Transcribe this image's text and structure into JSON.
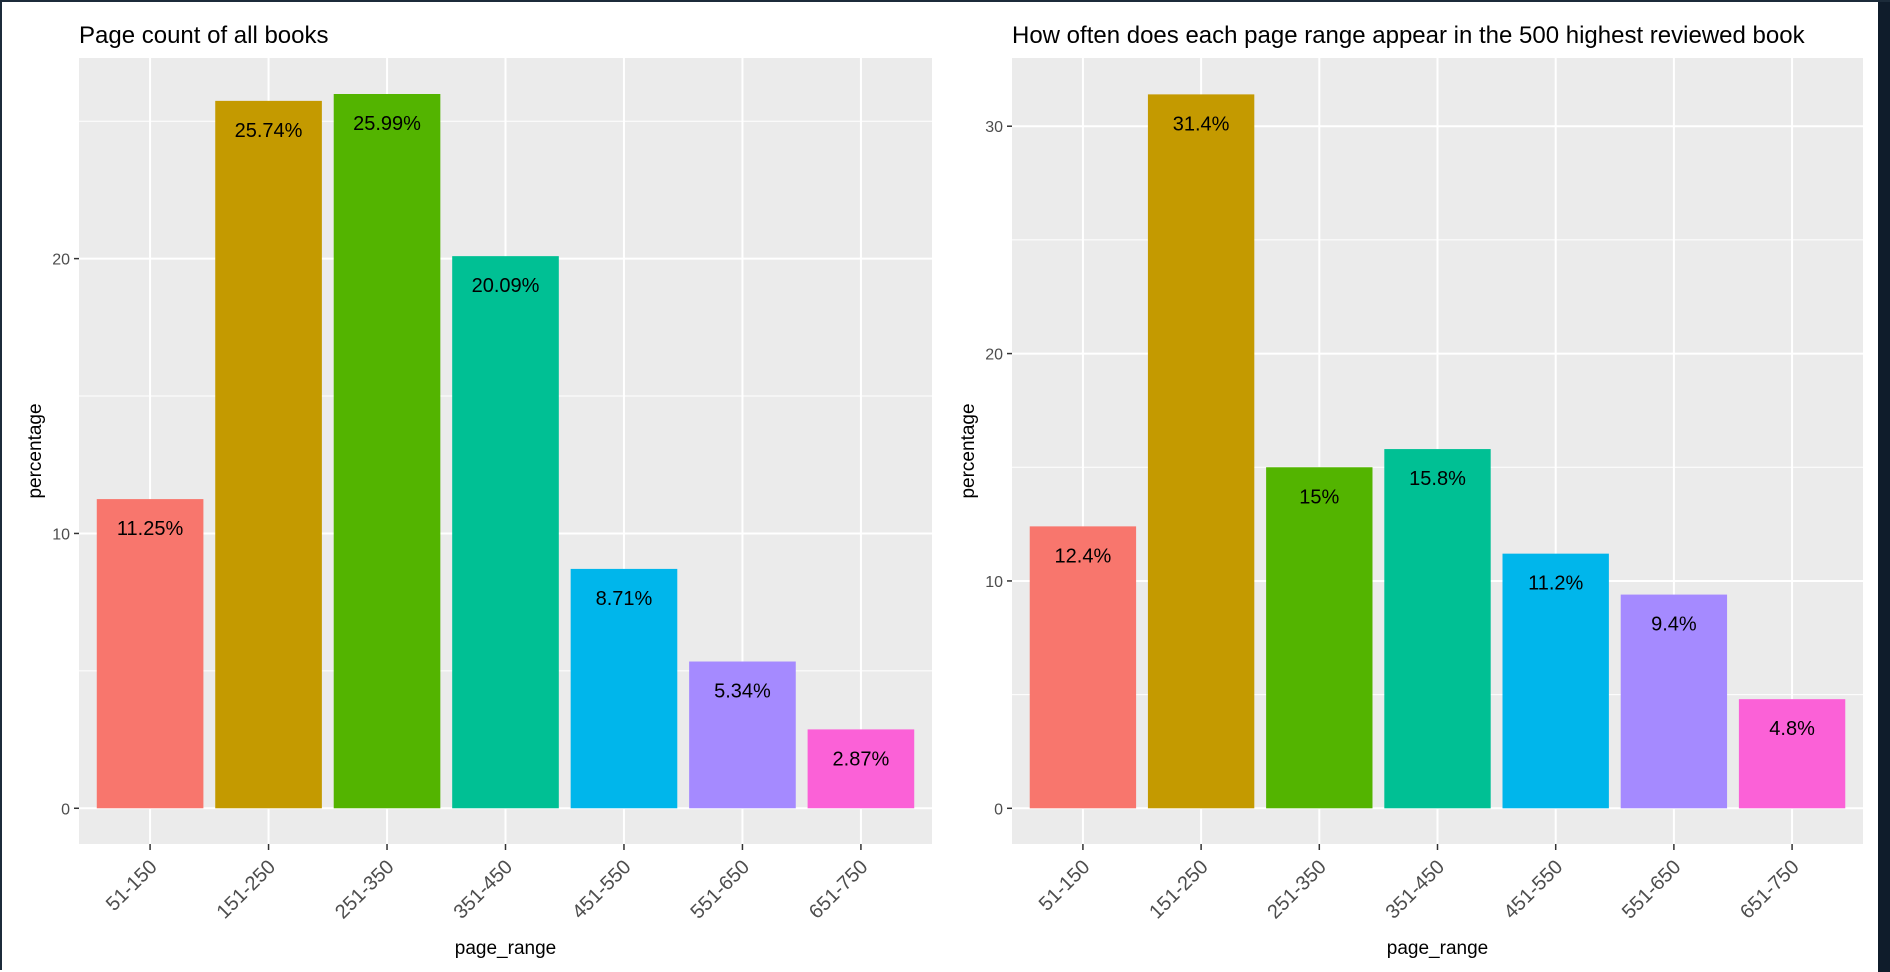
{
  "chart_data": [
    {
      "type": "bar",
      "title": "Page count of all books",
      "xlabel": "page_range",
      "ylabel": "percentage",
      "categories": [
        "51-150",
        "151-250",
        "251-350",
        "351-450",
        "451-550",
        "551-650",
        "651-750"
      ],
      "values": [
        11.25,
        25.74,
        25.99,
        20.09,
        8.71,
        5.34,
        2.87
      ],
      "value_labels": [
        "11.25%",
        "25.74%",
        "25.99%",
        "20.09%",
        "8.71%",
        "5.34%",
        "2.87%"
      ],
      "colors": [
        "#F8766D",
        "#C49A00",
        "#53B400",
        "#00C094",
        "#00B6EB",
        "#A58AFF",
        "#FB61D7"
      ],
      "y_ticks": [
        0,
        10,
        20
      ],
      "ylim": [
        -1.3,
        27.3
      ],
      "grid": true,
      "legend": "none"
    },
    {
      "type": "bar",
      "title": "How often does each page range appear in the 500 highest reviewed book",
      "xlabel": "page_range",
      "ylabel": "percentage",
      "categories": [
        "51-150",
        "151-250",
        "251-350",
        "351-450",
        "451-550",
        "551-650",
        "651-750"
      ],
      "values": [
        12.4,
        31.4,
        15,
        15.8,
        11.2,
        9.4,
        4.8
      ],
      "value_labels": [
        "12.4%",
        "31.4%",
        "15%",
        "15.8%",
        "11.2%",
        "9.4%",
        "4.8%"
      ],
      "colors": [
        "#F8766D",
        "#C49A00",
        "#53B400",
        "#00C094",
        "#00B6EB",
        "#A58AFF",
        "#FB61D7"
      ],
      "y_ticks": [
        0,
        10,
        20,
        30
      ],
      "ylim": [
        -1.57,
        33.0
      ],
      "grid": true,
      "legend": "none"
    }
  ]
}
